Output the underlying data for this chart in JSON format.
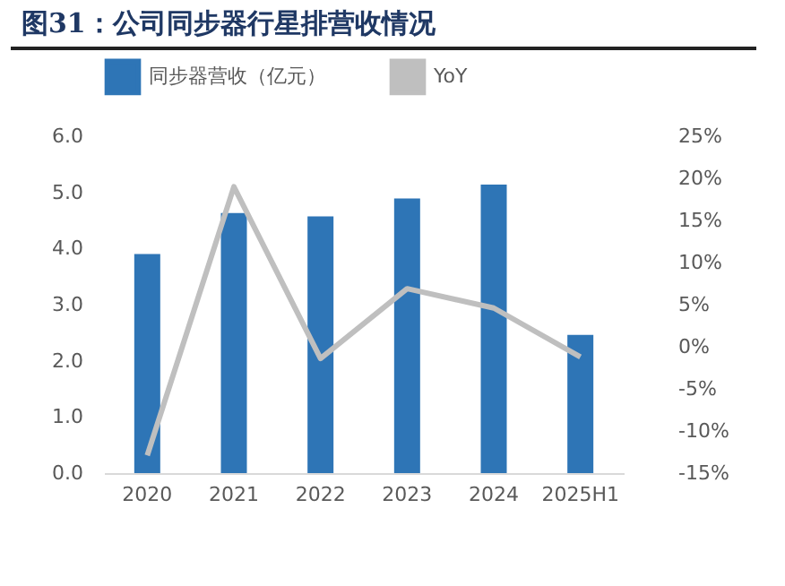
{
  "chart_data": {
    "type": "bar",
    "title": "图31：公司同步器行星排营收情况",
    "categories": [
      "2020",
      "2021",
      "2022",
      "2023",
      "2024",
      "2025H1"
    ],
    "series": [
      {
        "name": "同步器营收（亿元）",
        "color": "#2e75b6",
        "values": [
          3.9,
          4.63,
          4.57,
          4.89,
          5.14,
          2.46
        ]
      },
      {
        "name": "YoY",
        "type": "line",
        "axis": "y2",
        "color": "#bfbfbf",
        "values": [
          -12.9,
          19,
          -1.4,
          6.9,
          4.6,
          -1.2
        ]
      }
    ],
    "ylim": [
      0,
      6
    ],
    "yticks": [
      {
        "value": 0,
        "label": "0.0"
      },
      {
        "value": 1,
        "label": "1.0"
      },
      {
        "value": 2,
        "label": "2.0"
      },
      {
        "value": 3,
        "label": "3.0"
      },
      {
        "value": 4,
        "label": "4.0"
      },
      {
        "value": 5,
        "label": "5.0"
      },
      {
        "value": 6,
        "label": "6.0"
      }
    ],
    "y2lim": [
      -15,
      25
    ],
    "y2ticks": [
      {
        "value": -15,
        "label": "-15%"
      },
      {
        "value": -10,
        "label": "-10%"
      },
      {
        "value": -5,
        "label": "-5%"
      },
      {
        "value": 0,
        "label": "0%"
      },
      {
        "value": 5,
        "label": "5%"
      },
      {
        "value": 10,
        "label": "10%"
      },
      {
        "value": 15,
        "label": "15%"
      },
      {
        "value": 20,
        "label": "20%"
      },
      {
        "value": 25,
        "label": "25%"
      }
    ],
    "legend": "top",
    "grid": false,
    "marker": "none"
  }
}
